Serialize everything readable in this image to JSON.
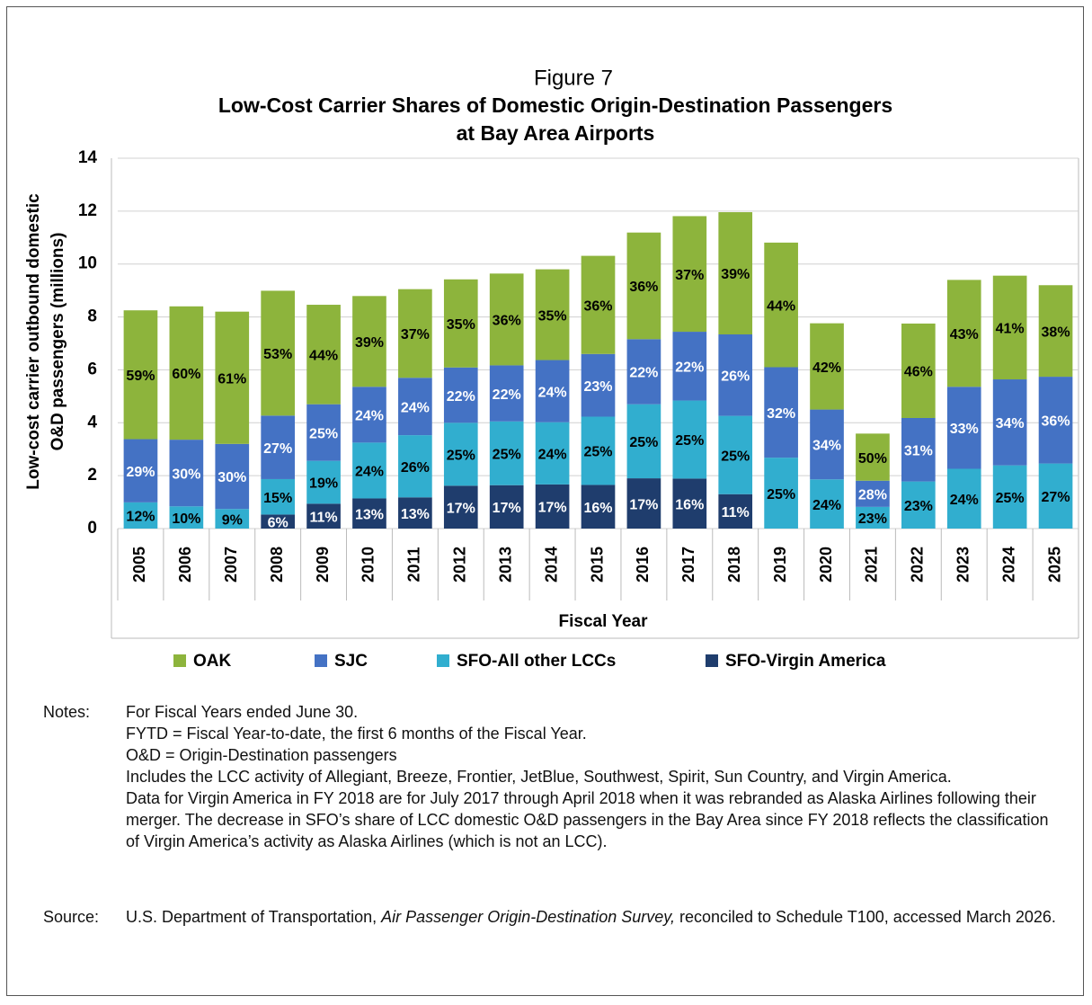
{
  "chart_data": {
    "type": "stacked_bar",
    "title": "Figure 7",
    "subtitle": [
      "Low-Cost Carrier Shares of Domestic Origin-Destination Passengers",
      "at Bay Area Airports"
    ],
    "ylabel": [
      "Low-cost carrier outbound domestic",
      "O&D passengers (millions)"
    ],
    "xlabel": "Fiscal Year",
    "categories": [
      "2005",
      "2006",
      "2007",
      "2008",
      "2009",
      "2010",
      "2011",
      "2012",
      "2013",
      "2014",
      "2015",
      "2016",
      "2017",
      "2018",
      "2019",
      "2020",
      "2021",
      "2022",
      "2023",
      "2024",
      "2025"
    ],
    "ylim": [
      0,
      14
    ],
    "yticks": [
      0,
      2,
      4,
      6,
      8,
      10,
      12,
      14
    ],
    "grid": true,
    "legend": "bottom",
    "series": [
      {
        "name": "OAK",
        "color": "#8db43c",
        "label_color": "#000000",
        "values": [
          4.87,
          5.04,
          5.0,
          4.72,
          3.76,
          3.43,
          3.35,
          3.33,
          3.47,
          3.43,
          3.71,
          4.03,
          4.37,
          4.62,
          4.71,
          3.26,
          1.78,
          3.57,
          4.04,
          3.92,
          3.46
        ],
        "labels": [
          "59%",
          "60%",
          "61%",
          "53%",
          "44%",
          "39%",
          "37%",
          "35%",
          "36%",
          "35%",
          "36%",
          "36%",
          "37%",
          "39%",
          "44%",
          "42%",
          "50%",
          "46%",
          "43%",
          "41%",
          "38%"
        ]
      },
      {
        "name": "SJC",
        "color": "#4472c4",
        "label_color": "#ffffff",
        "values": [
          2.39,
          2.52,
          2.46,
          2.4,
          2.14,
          2.11,
          2.17,
          2.09,
          2.12,
          2.35,
          2.37,
          2.46,
          2.6,
          3.08,
          3.42,
          2.64,
          0.99,
          2.4,
          3.1,
          3.25,
          3.28
        ],
        "labels": [
          "29%",
          "30%",
          "30%",
          "27%",
          "25%",
          "24%",
          "24%",
          "22%",
          "22%",
          "24%",
          "23%",
          "22%",
          "22%",
          "26%",
          "32%",
          "34%",
          "28%",
          "31%",
          "33%",
          "34%",
          "36%"
        ]
      },
      {
        "name": "SFO-All other LCCs",
        "color": "#31aecf",
        "label_color": "#000000",
        "values": [
          0.99,
          0.84,
          0.74,
          1.34,
          1.62,
          2.11,
          2.35,
          2.38,
          2.41,
          2.35,
          2.58,
          2.8,
          2.95,
          2.96,
          2.68,
          1.86,
          0.82,
          1.78,
          2.26,
          2.39,
          2.46
        ],
        "labels": [
          "12%",
          "10%",
          "9%",
          "15%",
          "19%",
          "24%",
          "26%",
          "25%",
          "25%",
          "24%",
          "25%",
          "25%",
          "25%",
          "25%",
          "25%",
          "24%",
          "23%",
          "23%",
          "24%",
          "25%",
          "27%"
        ]
      },
      {
        "name": "SFO-Virgin America",
        "color": "#1f3d6d",
        "label_color": "#ffffff",
        "values": [
          0,
          0,
          0,
          0.53,
          0.94,
          1.14,
          1.18,
          1.62,
          1.64,
          1.67,
          1.65,
          1.9,
          1.89,
          1.3,
          0,
          0,
          0,
          0,
          0,
          0,
          0
        ],
        "labels": [
          null,
          null,
          null,
          "6%",
          "11%",
          "13%",
          "13%",
          "17%",
          "17%",
          "17%",
          "16%",
          "17%",
          "16%",
          "11%",
          null,
          null,
          null,
          null,
          null,
          null,
          null
        ]
      }
    ]
  },
  "notes": {
    "label": "Notes:",
    "lines": [
      "For Fiscal Years ended June 30.",
      "FYTD = Fiscal Year-to-date, the first 6 months of the Fiscal Year.",
      "O&D = Origin-Destination passengers",
      "Includes the LCC activity of Allegiant, Breeze, Frontier, JetBlue, Southwest, Spirit, Sun Country, and Virgin America.",
      "Data for Virgin America in FY 2018 are for July 2017 through April 2018 when it was rebranded as Alaska Airlines following their merger.  The decrease in SFO’s share of LCC domestic O&D passengers in the Bay Area since FY 2018 reflects the classification of Virgin America’s activity as Alaska Airlines (which is not an LCC)."
    ]
  },
  "source": {
    "label": "Source:",
    "parts": [
      "U.S. Department of Transportation, ",
      "Air Passenger Origin-Destination Survey,",
      " reconciled to Schedule T100, accessed March 2026."
    ]
  }
}
